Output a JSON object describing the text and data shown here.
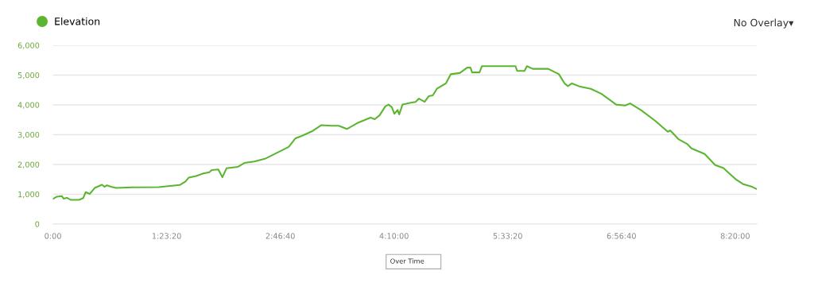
{
  "chart_data": {
    "type": "line",
    "x": [
      0,
      0.05,
      0.11,
      0.13,
      0.17,
      0.22,
      0.32,
      0.37,
      0.4,
      0.45,
      0.51,
      0.6,
      0.63,
      0.66,
      0.71,
      0.77,
      0.97,
      1.29,
      1.55,
      1.62,
      1.66,
      1.75,
      1.84,
      1.91,
      1.94,
      2.02,
      2.07,
      2.12,
      2.26,
      2.34,
      2.46,
      2.59,
      2.75,
      2.88,
      2.96,
      3.04,
      3.17,
      3.28,
      3.4,
      3.49,
      3.59,
      3.72,
      3.88,
      3.93,
      3.99,
      4.06,
      4.1,
      4.14,
      4.17,
      4.21,
      4.23,
      4.27,
      4.37,
      4.43,
      4.47,
      4.54,
      4.59,
      4.64,
      4.69,
      4.8,
      4.86,
      4.97,
      5.06,
      5.1,
      5.12,
      5.21,
      5.24,
      5.65,
      5.67,
      5.76,
      5.79,
      5.86,
      5.89,
      6.05,
      6.18,
      6.25,
      6.29,
      6.34,
      6.44,
      6.57,
      6.7,
      6.88,
      6.99,
      7.05,
      7.18,
      7.35,
      7.51,
      7.54,
      7.64,
      7.75,
      7.8,
      7.96,
      8.09,
      8.19,
      8.28,
      8.35,
      8.43,
      8.54,
      8.59
    ],
    "series": [
      {
        "name": "Elevation",
        "color": "#5cb531",
        "values": [
          840,
          920,
          940,
          850,
          880,
          810,
          810,
          870,
          1070,
          1010,
          1210,
          1320,
          1250,
          1300,
          1250,
          1210,
          1230,
          1240,
          1310,
          1430,
          1560,
          1610,
          1700,
          1740,
          1810,
          1830,
          1570,
          1870,
          1920,
          2050,
          2100,
          2190,
          2410,
          2590,
          2870,
          2960,
          3120,
          3320,
          3300,
          3300,
          3190,
          3390,
          3570,
          3520,
          3650,
          3950,
          4010,
          3920,
          3700,
          3830,
          3680,
          4010,
          4070,
          4100,
          4210,
          4100,
          4290,
          4320,
          4540,
          4720,
          5030,
          5070,
          5250,
          5250,
          5090,
          5090,
          5300,
          5300,
          5140,
          5140,
          5300,
          5210,
          5210,
          5210,
          5030,
          4720,
          4630,
          4720,
          4610,
          4540,
          4370,
          4010,
          3980,
          4050,
          3830,
          3480,
          3100,
          3140,
          2850,
          2680,
          2540,
          2350,
          1980,
          1880,
          1650,
          1480,
          1340,
          1250,
          1180
        ]
      }
    ],
    "xlim": [
      0,
      8.6
    ],
    "xticks": [
      {
        "value": 0,
        "label": "0:00"
      },
      {
        "value": 1.3889,
        "label": "1:23:20"
      },
      {
        "value": 2.7778,
        "label": "2:46:40"
      },
      {
        "value": 4.1667,
        "label": "4:10:00"
      },
      {
        "value": 5.5556,
        "label": "5:33:20"
      },
      {
        "value": 6.9444,
        "label": "6:56:40"
      },
      {
        "value": 8.3333,
        "label": "8:20:00"
      }
    ],
    "ylim": [
      0,
      6000
    ],
    "yticks": [
      {
        "value": 0,
        "label": "0"
      },
      {
        "value": 1000,
        "label": "1,000"
      },
      {
        "value": 2000,
        "label": "2,000"
      },
      {
        "value": 3000,
        "label": "3,000"
      },
      {
        "value": 4000,
        "label": "4,000"
      },
      {
        "value": 5000,
        "label": "5,000"
      },
      {
        "value": 6000,
        "label": "6,000"
      }
    ],
    "grid": "y",
    "legend": "top left",
    "marker": "none",
    "line_style": "solid",
    "annotations": [
      "No Overlay▾",
      "Over Time"
    ]
  }
}
